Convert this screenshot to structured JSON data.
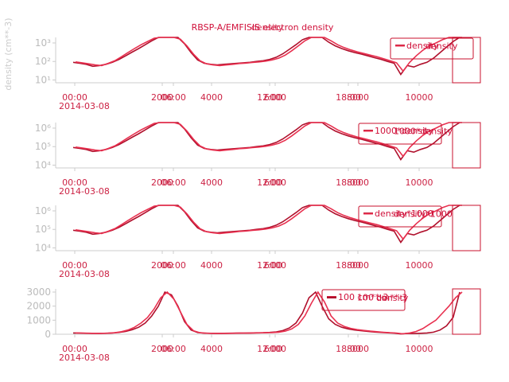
{
  "figure": {
    "title_lines": [
      "RBSP-A/EMFISIS electron density",
      "density"
    ],
    "ylabel": "density (cm**-3)"
  },
  "colors": {
    "dark": "#b0102c",
    "light": "#e8304f",
    "box": "#c8102e"
  },
  "chart_data": [
    {
      "type": "line",
      "yscale": "log",
      "ytick_labels": [
        "10¹",
        "10²",
        "10³"
      ],
      "ytick_values": [
        10,
        100,
        1000
      ],
      "xtick_labels": [
        "00:00",
        "2000",
        "06:00",
        "4000",
        "12:00",
        "6000",
        "18:00",
        "8000",
        "10000"
      ],
      "xdate_label": "2014-03-08",
      "legend": [
        "density",
        "density"
      ],
      "series": [
        {
          "values": [
            90,
            80,
            70,
            55,
            60,
            70,
            90,
            130,
            200,
            320,
            500,
            800,
            1300,
            2000,
            3000,
            2800,
            2000,
            900,
            300,
            120,
            80,
            70,
            65,
            70,
            75,
            80,
            85,
            90,
            100,
            110,
            130,
            170,
            260,
            450,
            800,
            1500,
            2600,
            3000,
            2000,
            1100,
            700,
            500,
            380,
            300,
            250,
            200,
            160,
            130,
            100,
            80,
            20,
            60,
            50,
            70,
            90,
            150,
            300,
            600,
            1200,
            3000
          ]
        },
        {
          "values": [
            95,
            85,
            75,
            65,
            60,
            80,
            110,
            180,
            300,
            500,
            800,
            1200,
            1800,
            2600,
            3000,
            2500,
            1600,
            700,
            250,
            110,
            75,
            65,
            60,
            65,
            70,
            78,
            82,
            88,
            95,
            105,
            120,
            150,
            220,
            380,
            700,
            1300,
            2200,
            3000,
            2300,
            1300,
            800,
            560,
            420,
            330,
            270,
            220,
            180,
            140,
            110,
            85,
            30,
            90,
            200,
            400,
            700,
            1000,
            1500,
            2000,
            2600,
            3000
          ]
        }
      ]
    },
    {
      "type": "line",
      "yscale": "log",
      "ytick_labels": [
        "10⁴",
        "10⁵",
        "10⁶"
      ],
      "ytick_values": [
        10000,
        100000,
        1000000
      ],
      "xtick_labels": [
        "00:00",
        "2000",
        "06:00",
        "4000",
        "12:00",
        "6000",
        "18:00",
        "8000",
        "10000"
      ],
      "xdate_label": "2014-03-08",
      "legend": [
        "1000*density",
        "1000*density"
      ],
      "series": [
        {
          "values": [
            90000,
            80000,
            70000,
            55000,
            60000,
            70000,
            90000,
            130000,
            200000,
            320000,
            500000,
            800000,
            1300000,
            2000000,
            3000000,
            2800000,
            2000000,
            900000,
            300000,
            120000,
            80000,
            70000,
            65000,
            70000,
            75000,
            80000,
            85000,
            90000,
            100000,
            110000,
            130000,
            170000,
            260000,
            450000,
            800000,
            1500000,
            2600000,
            3000000,
            2000000,
            1100000,
            700000,
            500000,
            380000,
            300000,
            250000,
            200000,
            160000,
            130000,
            100000,
            80000,
            20000,
            60000,
            50000,
            70000,
            90000,
            150000,
            300000,
            600000,
            1200000,
            3000000
          ]
        },
        {
          "values": [
            95000,
            85000,
            75000,
            65000,
            60000,
            80000,
            110000,
            180000,
            300000,
            500000,
            800000,
            1200000,
            1800000,
            2600000,
            3000000,
            2500000,
            1600000,
            700000,
            250000,
            110000,
            75000,
            65000,
            60000,
            65000,
            70000,
            78000,
            82000,
            88000,
            95000,
            105000,
            120000,
            150000,
            220000,
            380000,
            700000,
            1300000,
            2200000,
            3000000,
            2300000,
            1300000,
            800000,
            560000,
            420000,
            330000,
            270000,
            220000,
            180000,
            140000,
            110000,
            85000,
            30000,
            90000,
            200000,
            400000,
            700000,
            1000000,
            1500000,
            2000000,
            2600000,
            3000000
          ]
        }
      ]
    },
    {
      "type": "line",
      "yscale": "log",
      "ytick_labels": [
        "10⁴",
        "10⁵",
        "10⁶"
      ],
      "ytick_values": [
        10000,
        100000,
        1000000
      ],
      "xtick_labels": [
        "00:00",
        "2000",
        "06:00",
        "4000",
        "12:00",
        "6000",
        "18:00",
        "8000",
        "10000"
      ],
      "xdate_label": "2014-03-08",
      "legend": [
        "density*1000",
        "density*1000"
      ],
      "series": [
        {
          "values": [
            90000,
            80000,
            70000,
            55000,
            60000,
            70000,
            90000,
            130000,
            200000,
            320000,
            500000,
            800000,
            1300000,
            2000000,
            3000000,
            2800000,
            2000000,
            900000,
            300000,
            120000,
            80000,
            70000,
            65000,
            70000,
            75000,
            80000,
            85000,
            90000,
            100000,
            110000,
            130000,
            170000,
            260000,
            450000,
            800000,
            1500000,
            2600000,
            3000000,
            2000000,
            1100000,
            700000,
            500000,
            380000,
            300000,
            250000,
            200000,
            160000,
            130000,
            100000,
            80000,
            20000,
            60000,
            50000,
            70000,
            90000,
            150000,
            300000,
            600000,
            1200000,
            3000000
          ]
        },
        {
          "values": [
            95000,
            85000,
            75000,
            65000,
            60000,
            80000,
            110000,
            180000,
            300000,
            500000,
            800000,
            1200000,
            1800000,
            2600000,
            3000000,
            2500000,
            1600000,
            700000,
            250000,
            110000,
            75000,
            65000,
            60000,
            65000,
            70000,
            78000,
            82000,
            88000,
            95000,
            105000,
            120000,
            150000,
            220000,
            380000,
            700000,
            1300000,
            2200000,
            3000000,
            2300000,
            1300000,
            800000,
            560000,
            420000,
            330000,
            270000,
            220000,
            180000,
            140000,
            110000,
            85000,
            30000,
            90000,
            200000,
            400000,
            700000,
            1000000,
            1500000,
            2000000,
            2600000,
            3000000
          ]
        }
      ]
    },
    {
      "type": "line",
      "yscale": "linear",
      "ylim": [
        0,
        3000
      ],
      "ytick_labels": [
        "0",
        "1000",
        "2000",
        "3000"
      ],
      "ytick_values": [
        0,
        1000,
        2000,
        3000
      ],
      "xtick_labels": [
        "00:00",
        "2000",
        "06:00",
        "4000",
        "12:00",
        "6000",
        "18:00",
        "8000",
        "10000"
      ],
      "xdate_label": "2014-03-08",
      "legend": [
        "100 cm**-3",
        "100 cm**-3",
        "density"
      ],
      "series": [
        {
          "values": [
            90,
            80,
            70,
            55,
            60,
            70,
            90,
            130,
            200,
            320,
            500,
            800,
            1300,
            2000,
            3000,
            2800,
            2000,
            900,
            300,
            120,
            80,
            70,
            65,
            70,
            75,
            80,
            85,
            90,
            100,
            110,
            130,
            170,
            260,
            450,
            800,
            1500,
            2600,
            3000,
            2000,
            1100,
            700,
            500,
            380,
            300,
            250,
            200,
            160,
            130,
            100,
            80,
            20,
            60,
            50,
            70,
            90,
            150,
            300,
            600,
            1200,
            3000
          ]
        },
        {
          "values": [
            95,
            85,
            75,
            65,
            60,
            80,
            110,
            180,
            300,
            500,
            800,
            1200,
            1800,
            2600,
            3000,
            2500,
            1600,
            700,
            250,
            110,
            75,
            65,
            60,
            65,
            70,
            78,
            82,
            88,
            95,
            105,
            120,
            150,
            220,
            380,
            700,
            1300,
            2200,
            3000,
            2300,
            1300,
            800,
            560,
            420,
            330,
            270,
            220,
            180,
            140,
            110,
            85,
            30,
            90,
            200,
            400,
            700,
            1000,
            1500,
            2000,
            2600,
            3000
          ]
        }
      ]
    }
  ]
}
